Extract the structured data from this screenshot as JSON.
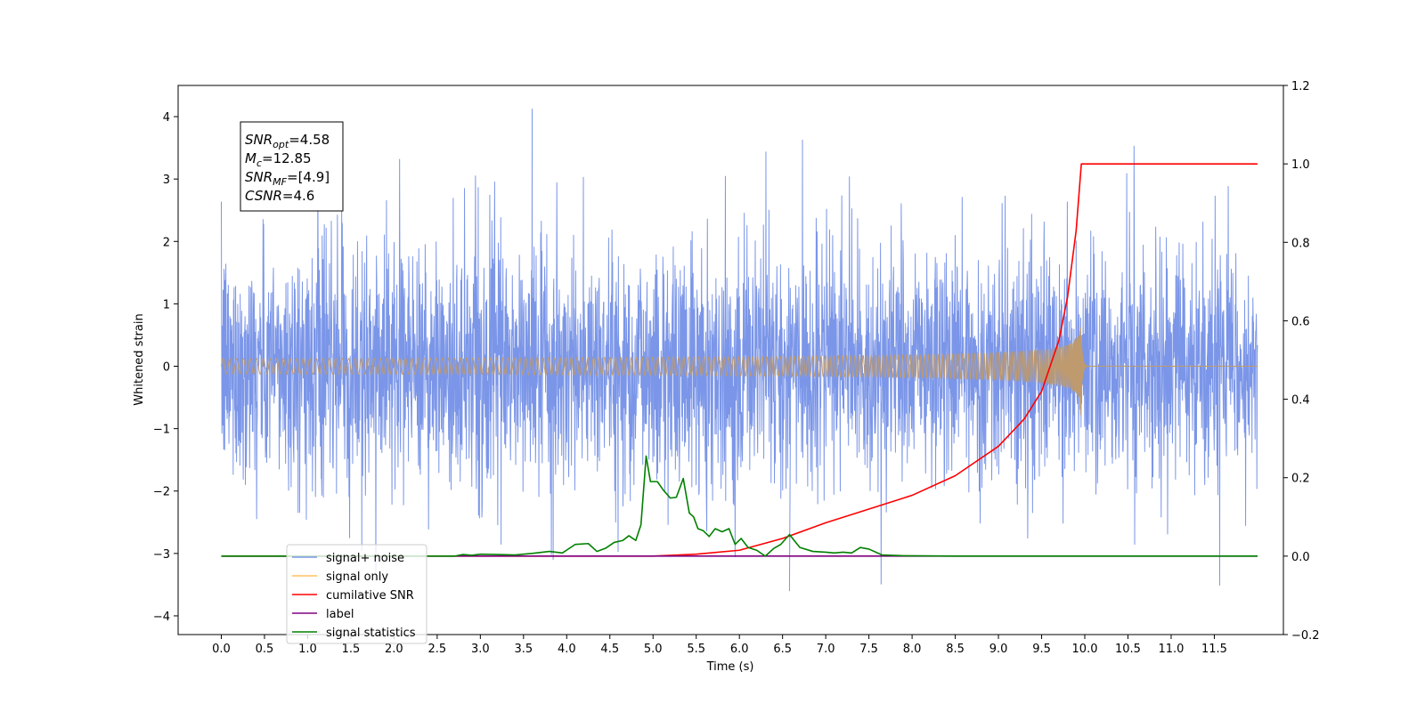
{
  "chart_data": {
    "type": "line",
    "title": "",
    "xlabel": "Time (s)",
    "ylabel": "Whitened strain",
    "xlim": [
      -0.5,
      12.3
    ],
    "ylim": [
      -4.3,
      4.5
    ],
    "y2lim": [
      -0.2,
      1.2
    ],
    "xticks": [
      "0.0",
      "0.5",
      "1.0",
      "1.5",
      "2.0",
      "2.5",
      "3.0",
      "3.5",
      "4.0",
      "4.5",
      "5.0",
      "5.5",
      "6.0",
      "6.5",
      "7.0",
      "7.5",
      "8.0",
      "8.5",
      "9.0",
      "9.5",
      "10.0",
      "10.5",
      "11.0",
      "11.5"
    ],
    "yticks": [
      "−4",
      "−3",
      "−2",
      "−1",
      "0",
      "1",
      "2",
      "3",
      "4"
    ],
    "y2ticks": [
      "−0.2",
      "0.0",
      "0.2",
      "0.4",
      "0.6",
      "0.8",
      "1.0",
      "1.2"
    ],
    "grid": false,
    "legend_position": "lower-left",
    "annotation": {
      "lines": [
        {
          "base": "SNR",
          "sub": "opt",
          "rest": "=4.58"
        },
        {
          "base": "M",
          "sub": "c",
          "rest": "=12.85"
        },
        {
          "base": "SNR",
          "sub": "MF",
          "rest": "=[4.9]"
        },
        {
          "base": "CSNR",
          "sub": "",
          "rest": "=4.6"
        }
      ]
    },
    "series": [
      {
        "name": "signal+ noise",
        "color": "#7b96e8",
        "axis": "left",
        "kind": "noise",
        "x_range": [
          0,
          12.0
        ],
        "std": 0.95,
        "extremes": [
          -3.6,
          4.12
        ]
      },
      {
        "name": "signal only",
        "color": "#ffbf60",
        "axis": "left",
        "kind": "chirp",
        "x_range": [
          0,
          12.0
        ],
        "merger_time": 9.96,
        "peak_amplitude": 0.87
      },
      {
        "name": "cumilative SNR",
        "color": "#ff0000",
        "axis": "right",
        "x": [
          0,
          5.0,
          5.5,
          6.0,
          6.5,
          7.0,
          7.5,
          8.0,
          8.5,
          9.0,
          9.3,
          9.5,
          9.7,
          9.8,
          9.9,
          9.96,
          9.97,
          12.0
        ],
        "y": [
          0,
          0.0,
          0.005,
          0.015,
          0.045,
          0.085,
          0.12,
          0.155,
          0.205,
          0.28,
          0.35,
          0.42,
          0.55,
          0.66,
          0.83,
          1.0,
          1.0,
          1.0
        ]
      },
      {
        "name": "label",
        "color": "#800080",
        "axis": "right",
        "x": [
          0,
          12.0
        ],
        "y": [
          0,
          0
        ]
      },
      {
        "name": "signal statistics",
        "color": "#008000",
        "axis": "right",
        "x": [
          0,
          2.7,
          2.8,
          2.9,
          3.0,
          3.2,
          3.4,
          3.6,
          3.8,
          3.95,
          4.1,
          4.25,
          4.35,
          4.45,
          4.55,
          4.65,
          4.72,
          4.8,
          4.86,
          4.92,
          4.97,
          5.05,
          5.12,
          5.2,
          5.27,
          5.35,
          5.42,
          5.47,
          5.52,
          5.58,
          5.65,
          5.72,
          5.8,
          5.88,
          5.95,
          6.02,
          6.1,
          6.2,
          6.3,
          6.4,
          6.48,
          6.58,
          6.7,
          6.85,
          7.0,
          7.1,
          7.2,
          7.3,
          7.4,
          7.5,
          7.65,
          7.9,
          8.5,
          12.0
        ],
        "y": [
          0,
          0.0,
          0.004,
          0.002,
          0.005,
          0.004,
          0.003,
          0.007,
          0.012,
          0.008,
          0.03,
          0.032,
          0.012,
          0.02,
          0.035,
          0.04,
          0.052,
          0.04,
          0.08,
          0.255,
          0.19,
          0.19,
          0.168,
          0.148,
          0.15,
          0.198,
          0.11,
          0.1,
          0.07,
          0.065,
          0.05,
          0.07,
          0.062,
          0.07,
          0.03,
          0.045,
          0.022,
          0.015,
          0.0,
          0.02,
          0.03,
          0.055,
          0.022,
          0.012,
          0.01,
          0.008,
          0.01,
          0.008,
          0.022,
          0.018,
          0.003,
          0.001,
          0.0,
          0.0
        ]
      }
    ]
  }
}
